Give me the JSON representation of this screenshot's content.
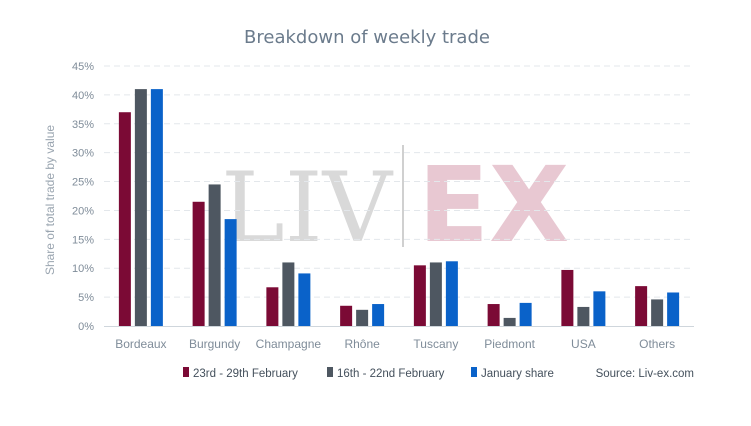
{
  "chart_data": {
    "type": "bar",
    "title": "Breakdown of weekly trade",
    "xlabel": "",
    "ylabel": "Share of total trade by value",
    "ylim": [
      0,
      45
    ],
    "yticks": [
      "0%",
      "5%",
      "10%",
      "15%",
      "20%",
      "25%",
      "30%",
      "35%",
      "40%",
      "45%"
    ],
    "categories": [
      "Bordeaux",
      "Burgundy",
      "Champagne",
      "Rhône",
      "Tuscany",
      "Piedmont",
      "USA",
      "Others"
    ],
    "series": [
      {
        "name": "23rd - 29th February",
        "color": "#7b0a35",
        "values": [
          37.0,
          21.5,
          6.7,
          3.5,
          10.5,
          3.8,
          9.7,
          6.9
        ]
      },
      {
        "name": "16th - 22nd February",
        "color": "#4e5761",
        "values": [
          41.0,
          24.5,
          11.0,
          2.8,
          11.0,
          1.4,
          3.3,
          4.6
        ]
      },
      {
        "name": "January share",
        "color": "#0a62c9",
        "values": [
          41.0,
          18.5,
          9.1,
          3.8,
          11.2,
          4.0,
          6.0,
          5.8
        ]
      }
    ],
    "grid": true,
    "legend_position": "bottom",
    "source": "Source: Liv-ex.com",
    "watermark": {
      "left": "LIV",
      "right": "EX"
    }
  }
}
